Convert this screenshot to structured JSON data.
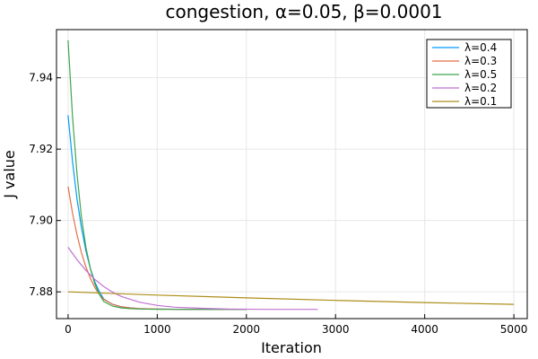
{
  "chart_data": {
    "type": "line",
    "title": "congestion, α=0.05, β=0.0001",
    "xlabel": "Iteration",
    "ylabel": "J value",
    "xlim": [
      -130,
      5150
    ],
    "ylim": [
      7.8725,
      7.9535
    ],
    "x_ticks": [
      0,
      1000,
      2000,
      3000,
      4000,
      5000
    ],
    "x_tick_labels": [
      "0",
      "1000",
      "2000",
      "3000",
      "4000",
      "5000"
    ],
    "y_ticks": [
      7.88,
      7.9,
      7.92,
      7.94
    ],
    "y_tick_labels": [
      "7.88",
      "7.90",
      "7.92",
      "7.94"
    ],
    "grid": true,
    "legend_position": "top-right",
    "series": [
      {
        "name": "λ=0.4",
        "color": "#009AFA",
        "x": [
          0,
          50,
          100,
          150,
          200,
          250,
          300,
          350,
          400,
          500,
          600,
          700,
          800,
          1000,
          1300,
          1600,
          2000
        ],
        "y": [
          7.9295,
          7.9165,
          7.906,
          7.898,
          7.8915,
          7.8865,
          7.8828,
          7.8801,
          7.878,
          7.8765,
          7.8758,
          7.8755,
          7.8753,
          7.8752,
          7.8751,
          7.8751,
          7.8751
        ]
      },
      {
        "name": "λ=0.3",
        "color": "#E36F47",
        "x": [
          0,
          50,
          100,
          150,
          200,
          250,
          300,
          350,
          400,
          500,
          600,
          700,
          800,
          1000,
          1300,
          1600,
          2000
        ],
        "y": [
          7.9095,
          7.902,
          7.896,
          7.891,
          7.887,
          7.8838,
          7.8812,
          7.8793,
          7.8779,
          7.8765,
          7.8758,
          7.8755,
          7.8753,
          7.8752,
          7.8751,
          7.8751,
          7.8751
        ]
      },
      {
        "name": "λ=0.5",
        "color": "#3EA44E",
        "x": [
          0,
          50,
          100,
          150,
          200,
          250,
          300,
          350,
          400,
          500,
          600,
          700,
          800,
          1000,
          1300,
          1600,
          2000
        ],
        "y": [
          7.9505,
          7.929,
          7.913,
          7.901,
          7.8925,
          7.8865,
          7.8822,
          7.8793,
          7.8773,
          7.876,
          7.8755,
          7.8753,
          7.8752,
          7.8751,
          7.8751,
          7.8751,
          7.8751
        ]
      },
      {
        "name": "λ=0.2",
        "color": "#C271D2",
        "x": [
          0,
          100,
          200,
          300,
          400,
          500,
          600,
          800,
          1000,
          1200,
          1500,
          1800,
          2200,
          2800
        ],
        "y": [
          7.8925,
          7.889,
          7.886,
          7.8835,
          7.8815,
          7.8799,
          7.8787,
          7.8771,
          7.8762,
          7.8757,
          7.8754,
          7.8752,
          7.8751,
          7.8751
        ]
      },
      {
        "name": "λ=0.1",
        "color": "#AC8D18",
        "x": [
          0,
          1000,
          2000,
          3000,
          4000,
          5000
        ],
        "y": [
          7.88,
          7.8791,
          7.8783,
          7.8776,
          7.877,
          7.8765
        ]
      }
    ]
  }
}
